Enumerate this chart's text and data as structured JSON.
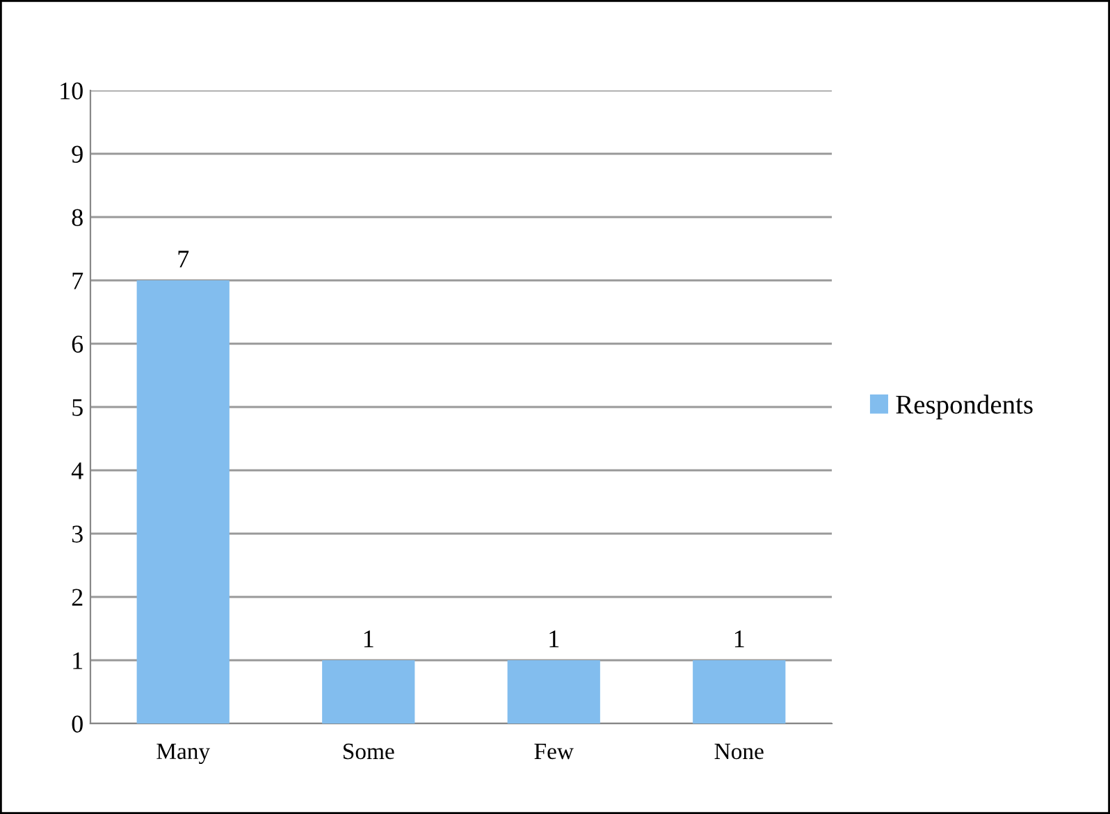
{
  "chart_data": {
    "type": "bar",
    "categories": [
      "Many",
      "Some",
      "Few",
      "None"
    ],
    "series": [
      {
        "name": "Respondents",
        "color": "#82bdee",
        "values": [
          7,
          1,
          1,
          1
        ]
      }
    ],
    "ylim": [
      0,
      10
    ],
    "yticks": [
      0,
      1,
      2,
      3,
      4,
      5,
      6,
      7,
      8,
      9,
      10
    ],
    "grid": "y",
    "legend": "right",
    "data_labels": true
  }
}
